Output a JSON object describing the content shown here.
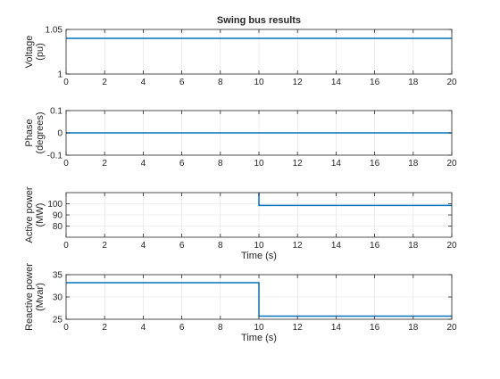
{
  "figure": {
    "title": "Swing bus results",
    "background": "#ffffff",
    "axis_color": "#262626",
    "grid_color": "#dfdfdf",
    "line_color": "#0072bd"
  },
  "chart_data": [
    {
      "type": "line",
      "title": "Swing bus results",
      "xlabel": "",
      "ylabel": "Voltage (pu)",
      "ylabel_lines": [
        "Voltage",
        "(pu)"
      ],
      "xlim": [
        0,
        20
      ],
      "ylim": [
        1,
        1.05
      ],
      "xticks": [
        0,
        2,
        4,
        6,
        8,
        10,
        12,
        14,
        16,
        18,
        20
      ],
      "yticks": [
        1,
        1.05
      ],
      "ytick_labels": [
        "1",
        "1.05"
      ],
      "grid": true,
      "series": [
        {
          "x": [
            0,
            20
          ],
          "y": [
            1.04,
            1.04
          ]
        }
      ]
    },
    {
      "type": "line",
      "title": "",
      "xlabel": "",
      "ylabel": "Phase (degrees)",
      "ylabel_lines": [
        "Phase",
        "(degrees)"
      ],
      "xlim": [
        0,
        20
      ],
      "ylim": [
        -0.1,
        0.1
      ],
      "xticks": [
        0,
        2,
        4,
        6,
        8,
        10,
        12,
        14,
        16,
        18,
        20
      ],
      "yticks": [
        -0.1,
        0,
        0.1
      ],
      "ytick_labels": [
        "-0.1",
        "0",
        "0.1"
      ],
      "grid": true,
      "series": [
        {
          "x": [
            0,
            20
          ],
          "y": [
            0,
            0
          ]
        }
      ]
    },
    {
      "type": "line",
      "title": "",
      "xlabel": "Time (s)",
      "ylabel": "Active power (MW)",
      "ylabel_lines": [
        "Active power",
        "(MW)"
      ],
      "xlim": [
        0,
        20
      ],
      "ylim": [
        70,
        110
      ],
      "xticks": [
        0,
        2,
        4,
        6,
        8,
        10,
        12,
        14,
        16,
        18,
        20
      ],
      "yticks": [
        80,
        90,
        100
      ],
      "ytick_labels": [
        "80",
        "90",
        "100"
      ],
      "grid": true,
      "series": [
        {
          "x": [
            10,
            10,
            20
          ],
          "y": [
            110,
            98.5,
            98.5
          ]
        }
      ]
    },
    {
      "type": "line",
      "title": "",
      "xlabel": "Time (s)",
      "ylabel": "Reactive power (Mvar)",
      "ylabel_lines": [
        "Reactive power",
        "(Mvar)"
      ],
      "xlim": [
        0,
        20
      ],
      "ylim": [
        25,
        35
      ],
      "xticks": [
        0,
        2,
        4,
        6,
        8,
        10,
        12,
        14,
        16,
        18,
        20
      ],
      "yticks": [
        25,
        30,
        35
      ],
      "ytick_labels": [
        "25",
        "30",
        "35"
      ],
      "grid": true,
      "series": [
        {
          "x": [
            0,
            10,
            10,
            20
          ],
          "y": [
            33.2,
            33.2,
            25.7,
            25.7
          ]
        }
      ]
    }
  ]
}
